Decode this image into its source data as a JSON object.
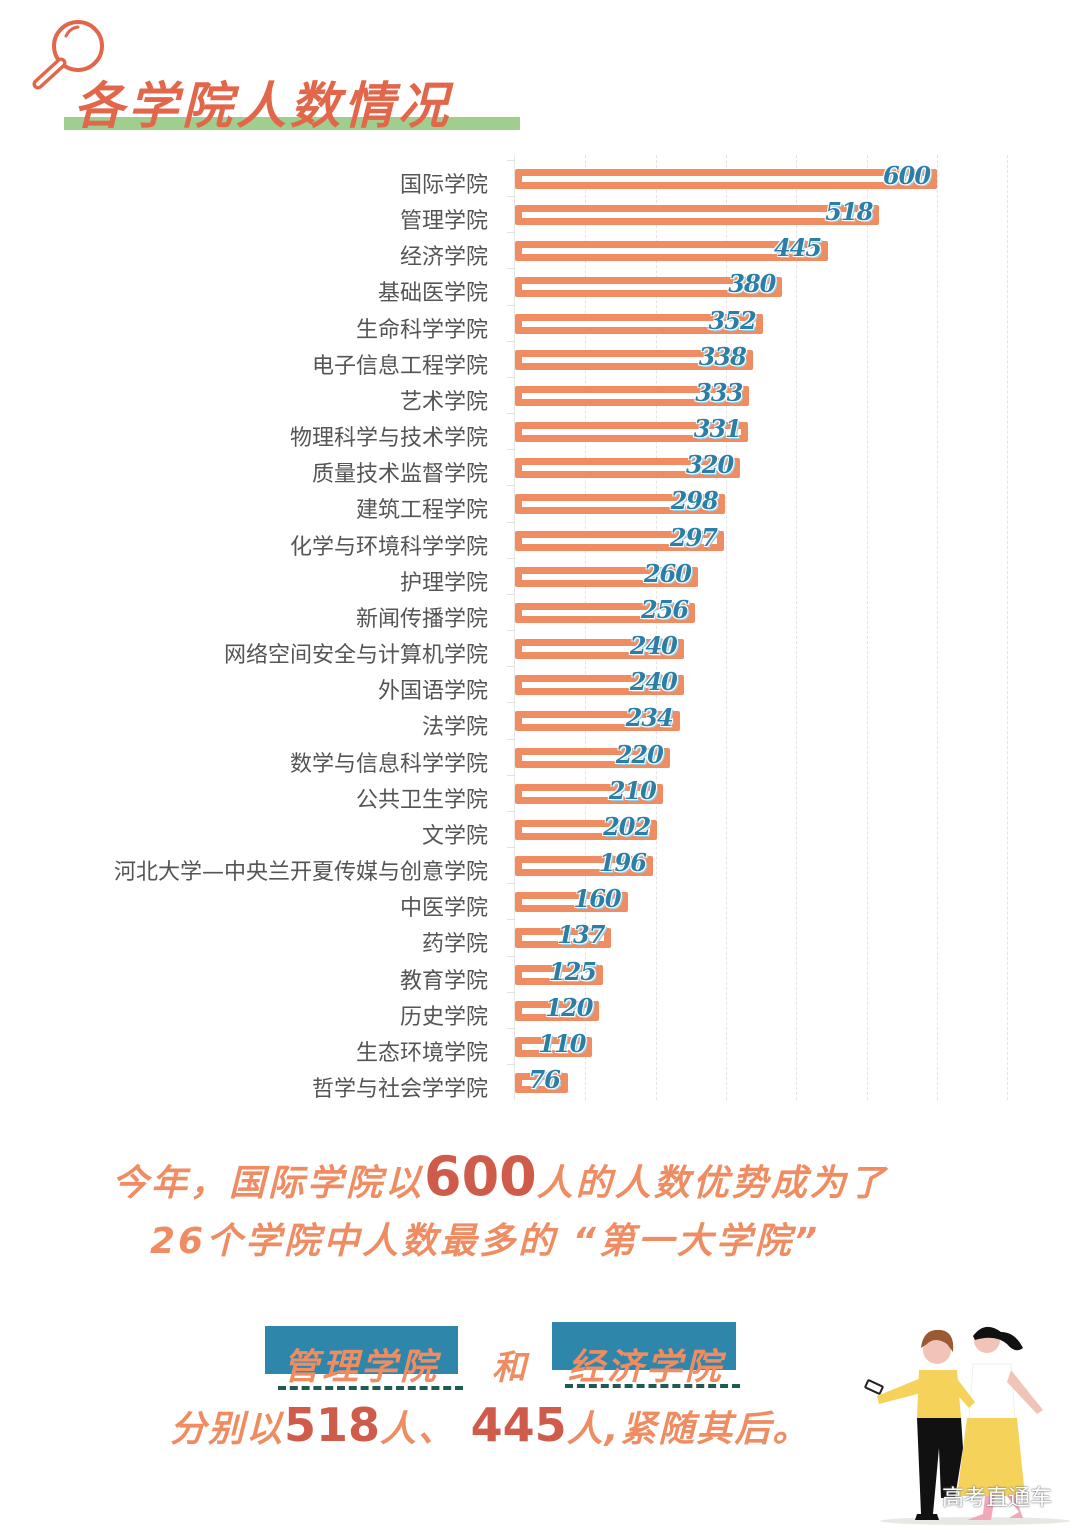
{
  "header": {
    "title": "各学院人数情况",
    "icon": "magnifier-icon"
  },
  "colors": {
    "title": "#e2674a",
    "title_underline": "#9fce8f",
    "bar": "#ef8c62",
    "value_label": "#2b7fa7",
    "label_text": "#555555",
    "highlight_number": "#cf5c4b",
    "highlight_underline": "#2f7fb8",
    "box": "#2e86ab"
  },
  "chart_data": {
    "type": "bar",
    "orientation": "horizontal",
    "title": "各学院人数情况",
    "xlabel": "",
    "ylabel": "",
    "xlim": [
      0,
      700
    ],
    "grid": true,
    "grid_style": "dashed vertical, every 100",
    "legend": null,
    "categories": [
      "国际学院",
      "管理学院",
      "经济学院",
      "基础医学院",
      "生命科学学院",
      "电子信息工程学院",
      "艺术学院",
      "物理科学与技术学院",
      "质量技术监督学院",
      "建筑工程学院",
      "化学与环境科学学院",
      "护理学院",
      "新闻传播学院",
      "网络空间安全与计算机学院",
      "外国语学院",
      "法学院",
      "数学与信息科学学院",
      "公共卫生学院",
      "文学院",
      "河北大学—中央兰开夏传媒与创意学院",
      "中医学院",
      "药学院",
      "教育学院",
      "历史学院",
      "生态环境学院",
      "哲学与社会学学院"
    ],
    "values": [
      600,
      518,
      445,
      380,
      352,
      338,
      333,
      331,
      320,
      298,
      297,
      260,
      256,
      240,
      240,
      234,
      220,
      210,
      202,
      196,
      160,
      137,
      125,
      120,
      110,
      76
    ],
    "value_labels": [
      "600",
      "518",
      "445",
      "380",
      "352",
      "338",
      "333",
      "331",
      "320",
      "298",
      "297",
      "260",
      "256",
      "240",
      "240",
      "234",
      "220",
      "210",
      "202",
      "196",
      "160",
      "137",
      "125",
      "120",
      "110",
      "76"
    ]
  },
  "summary": {
    "line1_prefix": "今年，国际学院以",
    "line1_number": "600",
    "line1_suffix": "人的人数优势成为了",
    "line2_prefix": "26个学院中人数最多的",
    "line2_highlight": "“第一大学院”",
    "box1_label": "管理学院",
    "and_text": "和",
    "box2_label": "经济学院",
    "line3_prefix": "分别以",
    "line3_number1": "518",
    "line3_mid": "人、",
    "line3_number2": "445",
    "line3_suffix": "人,紧随其后。"
  },
  "illustration": {
    "icon": "two-women-walking-illustration",
    "watermark": "高考直通车"
  }
}
